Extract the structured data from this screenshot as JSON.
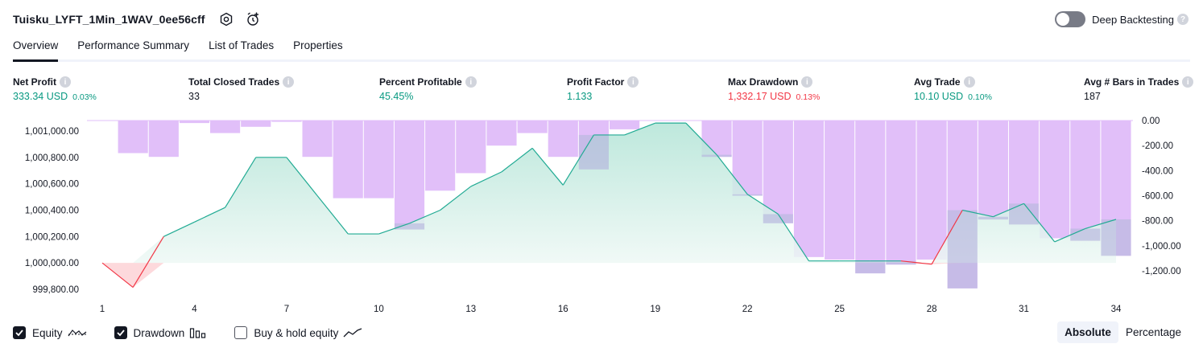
{
  "header": {
    "strategy_name": "Tuisku_LYFT_1Min_1WAV_0ee56cff",
    "settings_icon": "gear-icon",
    "alert_icon": "add-alert-icon",
    "deep_backtesting_label": "Deep Backtesting",
    "deep_backtesting_enabled": false
  },
  "tabs": [
    {
      "label": "Overview",
      "active": true
    },
    {
      "label": "Performance Summary",
      "active": false
    },
    {
      "label": "List of Trades",
      "active": false
    },
    {
      "label": "Properties",
      "active": false
    }
  ],
  "metrics": {
    "net_profit": {
      "label": "Net Profit",
      "value": "333.34 USD",
      "pct": "0.03%"
    },
    "total_closed_trades": {
      "label": "Total Closed Trades",
      "value": "33"
    },
    "percent_profitable": {
      "label": "Percent Profitable",
      "value": "45.45%"
    },
    "profit_factor": {
      "label": "Profit Factor",
      "value": "1.133"
    },
    "max_drawdown": {
      "label": "Max Drawdown",
      "value": "1,332.17 USD",
      "pct": "0.13%"
    },
    "avg_trade": {
      "label": "Avg Trade",
      "value": "10.10 USD",
      "pct": "0.10%"
    },
    "avg_bars": {
      "label": "Avg # Bars in Trades",
      "value": "187"
    }
  },
  "chart_data": {
    "type": "line",
    "x_ticks": [
      "1",
      "4",
      "7",
      "10",
      "13",
      "16",
      "19",
      "22",
      "25",
      "28",
      "31",
      "34"
    ],
    "left_axis_ticks": [
      "1,001,000.00",
      "1,000,800.00",
      "1,000,600.00",
      "1,000,400.00",
      "1,000,200.00",
      "1,000,000.00",
      "999,800.00"
    ],
    "right_axis_ticks": [
      "0.00",
      "-200.00",
      "-400.00",
      "-600.00",
      "-800.00",
      "-1,000.00",
      "-1,200.00"
    ],
    "left_ylim": [
      999800,
      1001000
    ],
    "right_ylim": [
      -1200,
      0
    ],
    "x": [
      1,
      2,
      3,
      4,
      5,
      6,
      7,
      8,
      9,
      10,
      11,
      12,
      13,
      14,
      15,
      16,
      17,
      18,
      19,
      20,
      21,
      22,
      23,
      24,
      25,
      26,
      27,
      28,
      29,
      30,
      31,
      32,
      33,
      34
    ],
    "series": [
      {
        "name": "Equity",
        "type": "line",
        "values": [
          1000000,
          999815,
          1000200,
          1000310,
          1000420,
          1000800,
          1000800,
          1000510,
          1000220,
          1000220,
          1000300,
          1000400,
          1000580,
          1000690,
          1000870,
          1000590,
          1000970,
          1000970,
          1001060,
          1001060,
          1000820,
          1000520,
          1000370,
          1000015,
          1000015,
          1000015,
          1000015,
          999990,
          1000400,
          1000350,
          1000450,
          1000160,
          1000260,
          1000330
        ]
      },
      {
        "name": "Drawdown",
        "type": "bar",
        "values": [
          0,
          -260,
          -290,
          -20,
          -100,
          -50,
          -10,
          -290,
          -620,
          -620,
          -870,
          -560,
          -420,
          -200,
          -100,
          -290,
          -390,
          -70,
          0,
          0,
          -290,
          -600,
          -820,
          -1090,
          -1110,
          -1220,
          -1150,
          -1110,
          -1340,
          -790,
          -830,
          -940,
          -960,
          -1080
        ]
      }
    ],
    "colors": {
      "equity_line": "#22ab94",
      "equity_fill_top": "#b2e4d6",
      "equity_fill_bottom": "#eef8f5",
      "below_line": "#f23645",
      "below_fill": "#fdd5d8",
      "drawdown_bar": "#e1bff9",
      "drawdown_bar_overlap": "#b7b8dd"
    }
  },
  "legend": [
    {
      "label": "Equity",
      "checked": true,
      "icon": "equity-line-icon"
    },
    {
      "label": "Drawdown",
      "checked": true,
      "icon": "drawdown-bars-icon"
    },
    {
      "label": "Buy & hold equity",
      "checked": false,
      "icon": "buy-hold-line-icon"
    }
  ],
  "view_mode": {
    "options": [
      "Absolute",
      "Percentage"
    ],
    "selected": "Absolute"
  }
}
